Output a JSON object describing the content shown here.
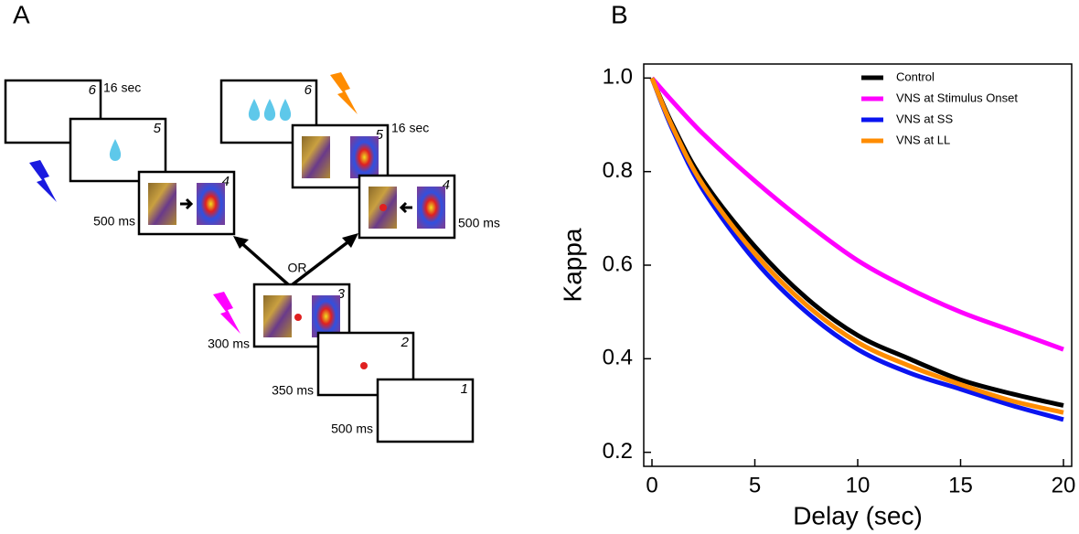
{
  "panel_a": {
    "label": "A",
    "or": "OR",
    "screens": [
      {
        "number": "6",
        "time": "16 sec"
      },
      {
        "number": "5"
      },
      {
        "number": "4",
        "time": "500 ms"
      },
      {
        "number": "6"
      },
      {
        "number": "5",
        "time": "16 sec"
      },
      {
        "number": "4",
        "time": "500 ms"
      },
      {
        "number": "3",
        "time": "300 ms"
      },
      {
        "number": "2",
        "time": "350 ms"
      },
      {
        "number": "1",
        "time": "500 ms"
      }
    ]
  },
  "chart_data": {
    "type": "line",
    "panel_label": "B",
    "x_label": "Delay (sec)",
    "y_label": "Kappa",
    "x": [
      0,
      1,
      2.5,
      5,
      7.5,
      10,
      12.5,
      15,
      17.5,
      20
    ],
    "series": [
      {
        "name": "Control",
        "color": "#000000",
        "values": [
          1,
          0.9,
          0.78,
          0.64,
          0.53,
          0.45,
          0.4,
          0.355,
          0.325,
          0.3
        ]
      },
      {
        "name": "VNS at Stimulus Onset",
        "color": "#ff00ff",
        "values": [
          1,
          0.95,
          0.88,
          0.78,
          0.69,
          0.61,
          0.55,
          0.5,
          0.46,
          0.42
        ]
      },
      {
        "name": "VNS at SS",
        "color": "#0a14f0",
        "values": [
          1,
          0.89,
          0.76,
          0.61,
          0.5,
          0.42,
          0.37,
          0.335,
          0.3,
          0.27
        ]
      },
      {
        "name": "VNS at LL",
        "color": "#ff8c00",
        "values": [
          1,
          0.895,
          0.77,
          0.625,
          0.515,
          0.435,
          0.385,
          0.345,
          0.31,
          0.285
        ]
      }
    ],
    "xlim": [
      -0.4,
      20.4
    ],
    "ylim": [
      0.17,
      1.03
    ],
    "xticks": [
      0,
      5,
      10,
      15,
      20
    ],
    "yticks": [
      0.2,
      0.4,
      0.6,
      0.8,
      {
        "value": 1,
        "label": "1.0"
      }
    ],
    "legend": "upper right"
  }
}
